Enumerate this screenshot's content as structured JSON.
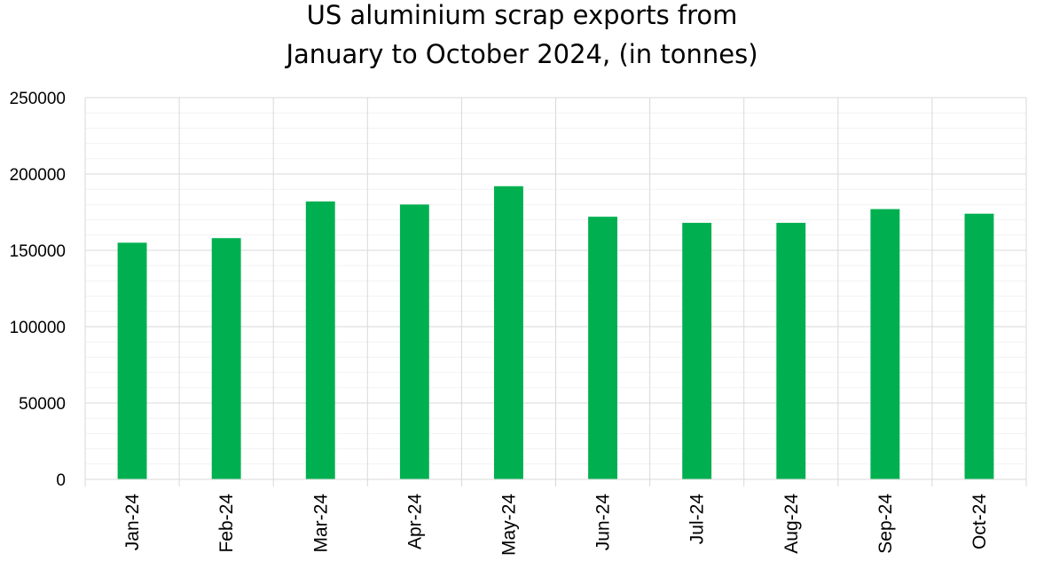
{
  "chart_data": {
    "type": "bar",
    "title_lines": [
      "US aluminium scrap exports from",
      "January to October 2024, (in tonnes)"
    ],
    "categories": [
      "Jan-24",
      "Feb-24",
      "Mar-24",
      "Apr-24",
      "May-24",
      "Jun-24",
      "Jul-24",
      "Aug-24",
      "Sep-24",
      "Oct-24"
    ],
    "values": [
      155000,
      158000,
      182000,
      180000,
      192000,
      172000,
      168000,
      168000,
      177000,
      174000
    ],
    "ylim": [
      0,
      250000
    ],
    "yticks": [
      "0",
      "50000",
      "100000",
      "150000",
      "200000",
      "250000"
    ],
    "xlabel": "",
    "ylabel": "",
    "grid": true,
    "minor_grid": true,
    "bar_color": "#00b050",
    "grid_color": "#d9d9d9",
    "minor_grid_color": "#f2f2f2"
  }
}
